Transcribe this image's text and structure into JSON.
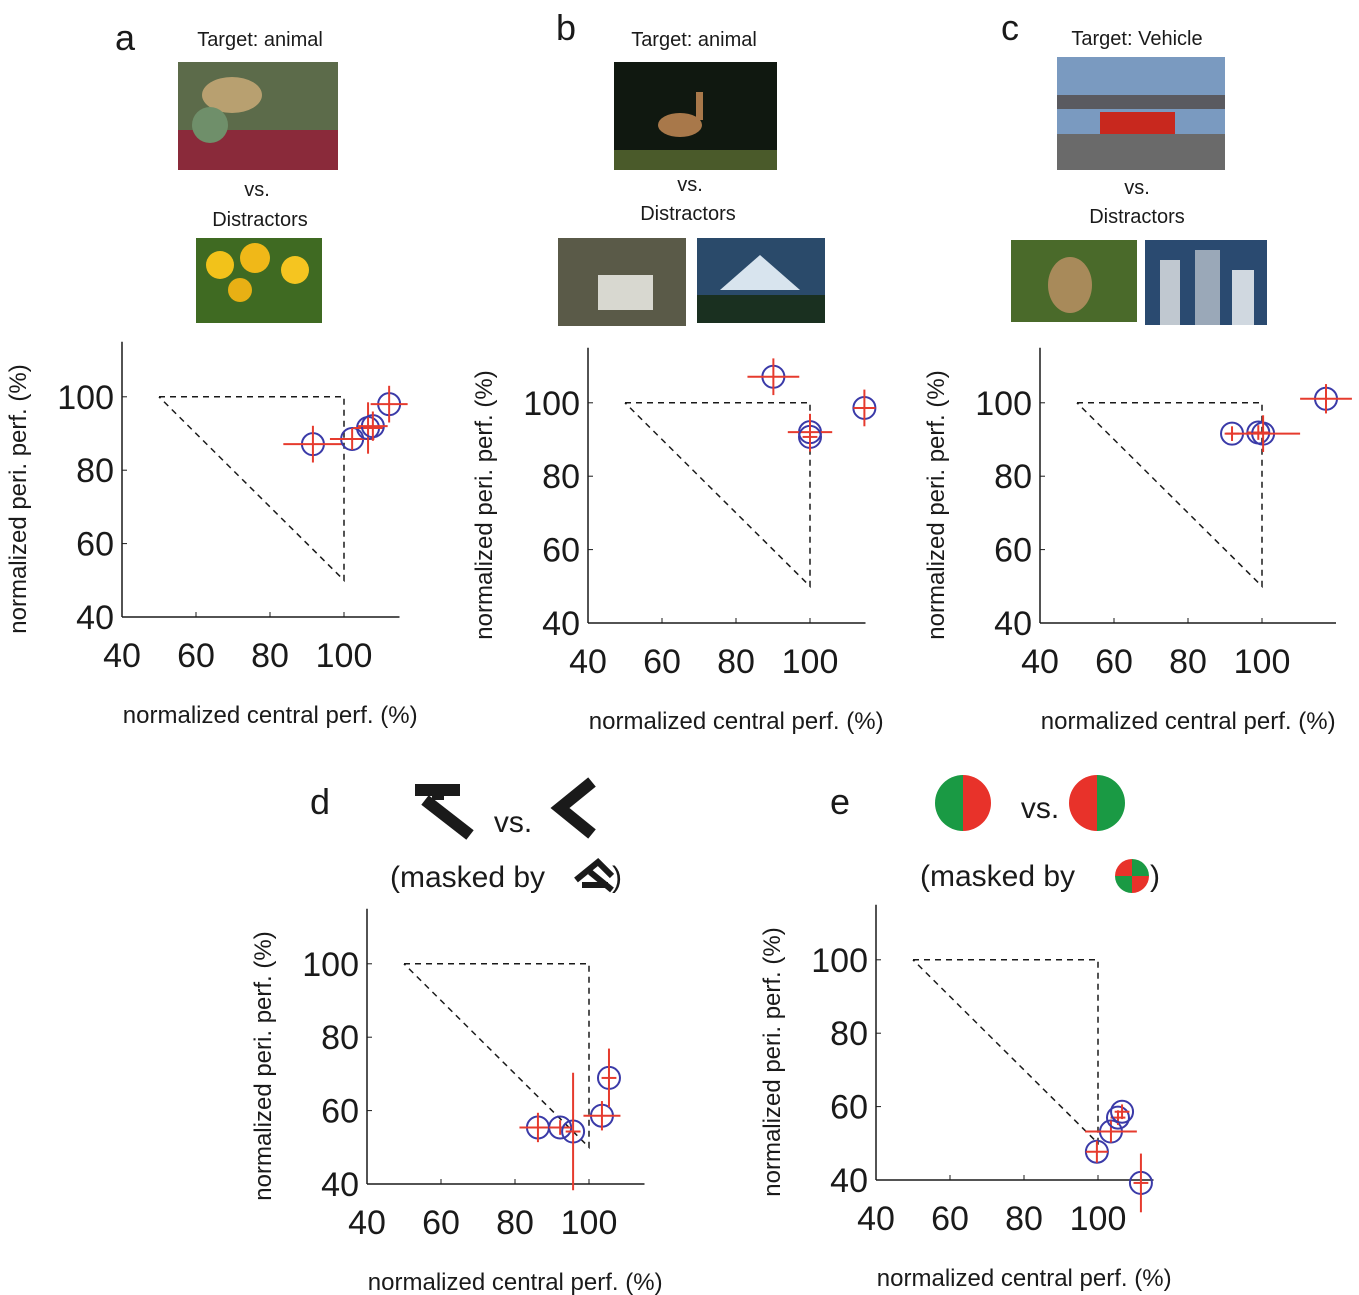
{
  "chart_data": [
    {
      "type": "scatter",
      "panel": "a",
      "target": "Target: animal",
      "vs": "vs.",
      "distractors": "Distractors",
      "xlabel": "normalized central perf. (%)",
      "ylabel": "normalized peri. perf. (%)",
      "x": [
        91.6,
        102.2,
        106.5,
        107.8,
        112.2
      ],
      "y": [
        87.1,
        88.5,
        91.5,
        92,
        98
      ],
      "xerr": [
        8,
        6,
        4,
        4,
        5
      ],
      "yerr": [
        5,
        3,
        7,
        4,
        5
      ],
      "xlim": [
        40,
        115
      ],
      "ylim": [
        40,
        115
      ],
      "xticks": [
        40,
        60,
        80,
        100
      ],
      "yticks": [
        40,
        60,
        80,
        100
      ],
      "reference_x": [
        50,
        100,
        100,
        50
      ],
      "reference_y": [
        100,
        100,
        50,
        100
      ],
      "marker_color": "#3a3aa8",
      "errorbar_color": "#e63b2e"
    },
    {
      "type": "scatter",
      "panel": "b",
      "target": "Target: animal",
      "vs": "vs.",
      "distractors": "Distractors",
      "xlabel": "normalized central perf. (%)",
      "ylabel": "normalized peri. perf. (%)",
      "x": [
        90.1,
        100,
        100,
        114.7
      ],
      "y": [
        107.1,
        92,
        90.7,
        98.6
      ],
      "xerr": [
        7,
        6,
        2,
        3
      ],
      "yerr": [
        5,
        5,
        4,
        5
      ],
      "xlim": [
        40,
        115
      ],
      "ylim": [
        40,
        115
      ],
      "xticks": [
        40,
        60,
        80,
        100
      ],
      "yticks": [
        40,
        60,
        80,
        100
      ],
      "reference_x": [
        50,
        100,
        100,
        50
      ],
      "reference_y": [
        100,
        100,
        50,
        100
      ],
      "marker_color": "#3a3aa8",
      "errorbar_color": "#e63b2e"
    },
    {
      "type": "scatter",
      "panel": "c",
      "target": "Target: Vehicle",
      "vs": "vs.",
      "distractors": "Distractors",
      "xlabel": "normalized central perf. (%)",
      "ylabel": "normalized peri. perf. (%)",
      "x": [
        91.9,
        99,
        100.3,
        117.3
      ],
      "y": [
        91.6,
        91.9,
        91.6,
        101.1
      ],
      "xerr": [
        2,
        3,
        10,
        7
      ],
      "yerr": [
        2,
        2,
        5,
        4
      ],
      "xlim": [
        40,
        120
      ],
      "ylim": [
        40,
        115
      ],
      "xticks": [
        40,
        60,
        80,
        100
      ],
      "yticks": [
        40,
        60,
        80,
        100
      ],
      "reference_x": [
        50,
        100,
        100,
        50
      ],
      "reference_y": [
        100,
        100,
        50,
        100
      ],
      "marker_color": "#3a3aa8",
      "errorbar_color": "#e63b2e"
    },
    {
      "type": "scatter",
      "panel": "d",
      "vs": "vs.",
      "mask_open": "(masked by",
      "mask_close": ")",
      "xlabel": "normalized central perf. (%)",
      "ylabel": "normalized peri. perf. (%)",
      "x": [
        86.2,
        92.2,
        95.7,
        103.5,
        105.4
      ],
      "y": [
        55.4,
        55.4,
        54.3,
        58.6,
        68.9
      ],
      "xerr": [
        5,
        3,
        2,
        5,
        2
      ],
      "yerr": [
        4,
        2,
        16,
        4,
        8
      ],
      "xlim": [
        40,
        115
      ],
      "ylim": [
        40,
        115
      ],
      "xticks": [
        40,
        60,
        80,
        100
      ],
      "yticks": [
        40,
        60,
        80,
        100
      ],
      "reference_x": [
        50,
        100,
        100,
        50
      ],
      "reference_y": [
        100,
        100,
        50,
        100
      ],
      "marker_color": "#3a3aa8",
      "errorbar_color": "#e63b2e"
    },
    {
      "type": "scatter",
      "panel": "e",
      "vs": "vs.",
      "mask_open": "(masked by",
      "mask_close": ")",
      "xlabel": "normalized central perf. (%)",
      "ylabel": "normalized peri. perf. (%)",
      "x": [
        99.7,
        103.5,
        105.4,
        106.5,
        111.6
      ],
      "y": [
        47.7,
        53.2,
        57,
        58.6,
        39.2
      ],
      "xerr": [
        3,
        7,
        2,
        2,
        2
      ],
      "yerr": [
        3,
        3,
        2,
        2,
        8
      ],
      "xlim": [
        40,
        115
      ],
      "ylim": [
        40,
        115
      ],
      "xticks": [
        40,
        60,
        80,
        100
      ],
      "yticks": [
        40,
        60,
        80,
        100
      ],
      "reference_x": [
        50,
        100,
        100,
        50
      ],
      "reference_y": [
        100,
        100,
        50,
        100
      ],
      "marker_color": "#3a3aa8",
      "errorbar_color": "#e63b2e"
    }
  ]
}
